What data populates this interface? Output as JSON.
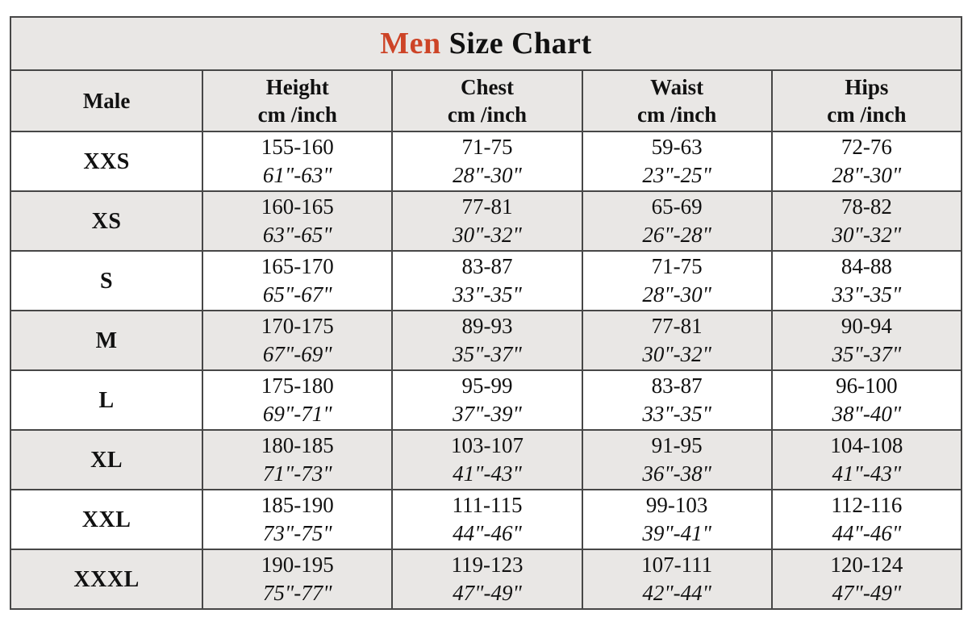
{
  "title": {
    "highlight": "Men",
    "rest": "Size Chart"
  },
  "chart_data": {
    "type": "table",
    "title": "Men Size Chart",
    "columns": [
      {
        "label": "Male",
        "sub": ""
      },
      {
        "label": "Height",
        "sub": "cm /inch"
      },
      {
        "label": "Chest",
        "sub": "cm /inch"
      },
      {
        "label": "Waist",
        "sub": "cm /inch"
      },
      {
        "label": "Hips",
        "sub": "cm /inch"
      }
    ],
    "rows": [
      {
        "size": "XXS",
        "height_cm": "155-160",
        "height_in": "61\"-63\"",
        "chest_cm": "71-75",
        "chest_in": "28\"-30\"",
        "waist_cm": "59-63",
        "waist_in": "23\"-25\"",
        "hips_cm": "72-76",
        "hips_in": "28\"-30\""
      },
      {
        "size": "XS",
        "height_cm": "160-165",
        "height_in": "63\"-65\"",
        "chest_cm": "77-81",
        "chest_in": "30\"-32\"",
        "waist_cm": "65-69",
        "waist_in": "26\"-28\"",
        "hips_cm": "78-82",
        "hips_in": "30\"-32\""
      },
      {
        "size": "S",
        "height_cm": "165-170",
        "height_in": "65\"-67\"",
        "chest_cm": "83-87",
        "chest_in": "33\"-35\"",
        "waist_cm": "71-75",
        "waist_in": "28\"-30\"",
        "hips_cm": "84-88",
        "hips_in": "33\"-35\""
      },
      {
        "size": "M",
        "height_cm": "170-175",
        "height_in": "67\"-69\"",
        "chest_cm": "89-93",
        "chest_in": "35\"-37\"",
        "waist_cm": "77-81",
        "waist_in": "30\"-32\"",
        "hips_cm": "90-94",
        "hips_in": "35\"-37\""
      },
      {
        "size": "L",
        "height_cm": "175-180",
        "height_in": "69\"-71\"",
        "chest_cm": "95-99",
        "chest_in": "37\"-39\"",
        "waist_cm": "83-87",
        "waist_in": "33\"-35\"",
        "hips_cm": "96-100",
        "hips_in": "38\"-40\""
      },
      {
        "size": "XL",
        "height_cm": "180-185",
        "height_in": "71\"-73\"",
        "chest_cm": "103-107",
        "chest_in": "41\"-43\"",
        "waist_cm": "91-95",
        "waist_in": "36\"-38\"",
        "hips_cm": "104-108",
        "hips_in": "41\"-43\""
      },
      {
        "size": "XXL",
        "height_cm": "185-190",
        "height_in": "73\"-75\"",
        "chest_cm": "111-115",
        "chest_in": "44\"-46\"",
        "waist_cm": "99-103",
        "waist_in": "39\"-41\"",
        "hips_cm": "112-116",
        "hips_in": "44\"-46\""
      },
      {
        "size": "XXXL",
        "height_cm": "190-195",
        "height_in": "75\"-77\"",
        "chest_cm": "119-123",
        "chest_in": "47\"-49\"",
        "waist_cm": "107-111",
        "waist_in": "42\"-44\"",
        "hips_cm": "120-124",
        "hips_in": "47\"-49\""
      }
    ]
  },
  "colors": {
    "accent": "#cd4427",
    "cell_grey": "#e9e7e5",
    "cell_white": "#ffffff",
    "border": "#474747"
  }
}
